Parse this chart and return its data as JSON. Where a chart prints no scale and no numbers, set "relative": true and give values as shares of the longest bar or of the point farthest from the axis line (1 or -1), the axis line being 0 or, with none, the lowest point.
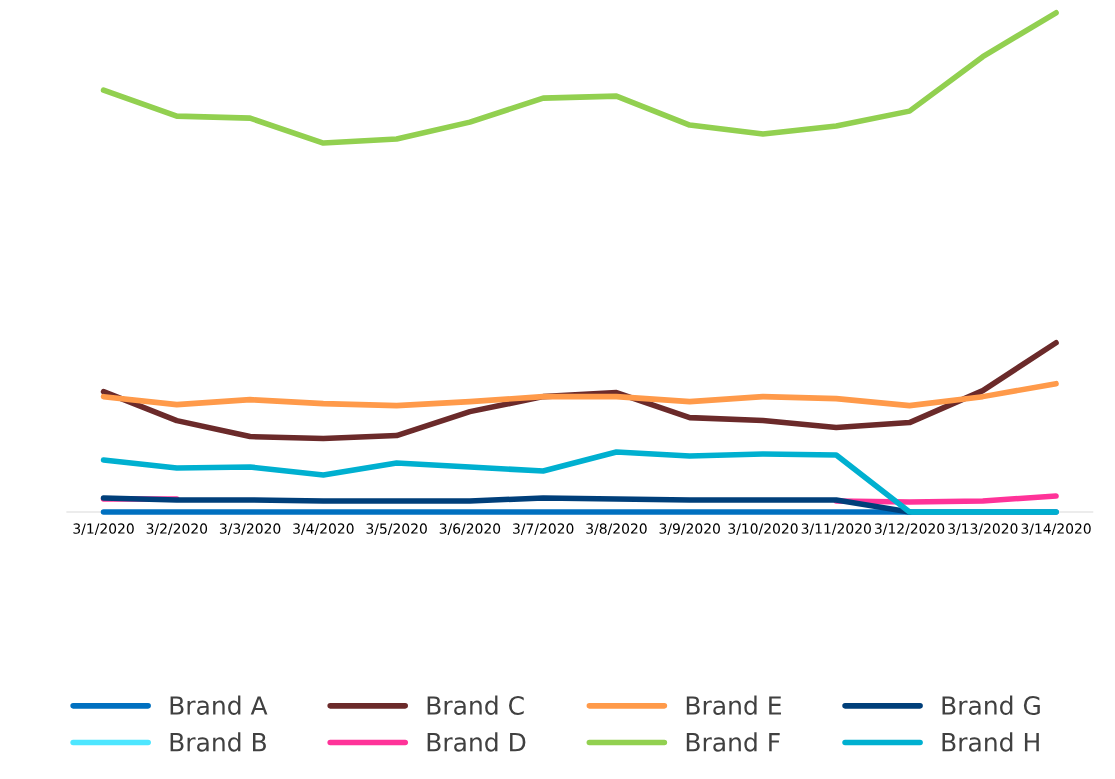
{
  "chart_data": {
    "type": "line",
    "relative": true,
    "grid": false,
    "legend": "bottom",
    "marker": "none",
    "line_style": "solid",
    "categories": [
      "3/1/2020",
      "3/2/2020",
      "3/3/2020",
      "3/4/2020",
      "3/5/2020",
      "3/6/2020",
      "3/7/2020",
      "3/8/2020",
      "3/9/2020",
      "3/10/2020",
      "3/11/2020",
      "3/12/2020",
      "3/13/2020",
      "3/14/2020"
    ],
    "series": [
      {
        "name": "Brand A",
        "color": "#0070c0",
        "values": [
          0,
          0,
          0,
          0,
          0,
          0,
          0,
          0,
          0,
          0,
          0,
          0,
          0,
          0
        ]
      },
      {
        "name": "Brand B",
        "color": "#4ee6ff",
        "values": [
          null,
          null,
          null,
          null,
          null,
          null,
          null,
          null,
          null,
          null,
          null,
          null,
          null,
          null
        ]
      },
      {
        "name": "Brand C",
        "color": "#6b2a2a",
        "values": [
          0.241,
          0.183,
          0.151,
          0.147,
          0.153,
          0.201,
          0.231,
          0.239,
          0.189,
          0.183,
          0.169,
          0.179,
          0.243,
          0.339
        ]
      },
      {
        "name": "Brand D",
        "color": "#ff3399",
        "values": [
          0.026,
          0.026,
          null,
          null,
          null,
          null,
          null,
          null,
          null,
          null,
          0.022,
          0.02,
          0.022,
          0.032
        ]
      },
      {
        "name": "Brand E",
        "color": "#ff9a4a",
        "values": [
          0.231,
          0.215,
          0.225,
          0.217,
          0.213,
          0.221,
          0.231,
          0.231,
          0.221,
          0.231,
          0.227,
          0.213,
          0.231,
          0.257
        ]
      },
      {
        "name": "Brand F",
        "color": "#92d050",
        "values": [
          0.845,
          0.793,
          0.789,
          0.739,
          0.747,
          0.781,
          0.829,
          0.833,
          0.775,
          0.757,
          0.773,
          0.803,
          0.912,
          1
        ]
      },
      {
        "name": "Brand G",
        "color": "#003f7a",
        "values": [
          0.028,
          0.024,
          0.024,
          0.022,
          0.022,
          0.022,
          0.028,
          0.026,
          0.024,
          0.024,
          0.024,
          0,
          null,
          null
        ]
      },
      {
        "name": "Brand H",
        "color": "#00b0d0",
        "values": [
          0.104,
          0.088,
          0.09,
          0.074,
          0.098,
          0.09,
          0.082,
          0.12,
          0.112,
          0.116,
          0.114,
          0,
          0,
          0
        ]
      }
    ]
  }
}
